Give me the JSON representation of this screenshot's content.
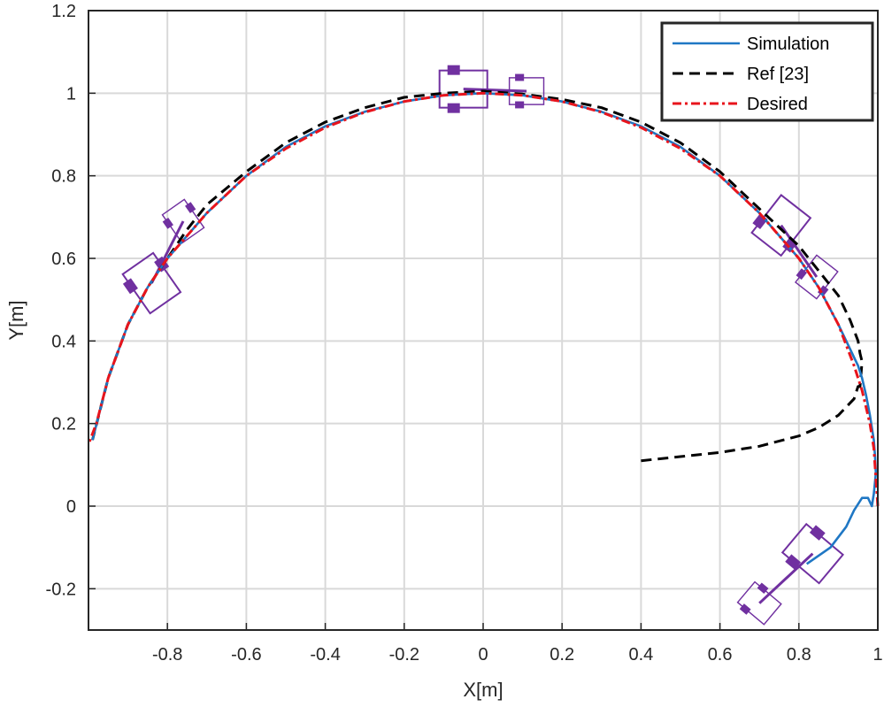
{
  "colors": {
    "simulation": "#1f77c4",
    "ref": "#000000",
    "desired": "#e8141c",
    "robot": "#7030a0",
    "grid": "#d9d9d9",
    "axis": "#262626"
  },
  "chart_data": {
    "type": "line",
    "xlabel": "X[m]",
    "ylabel": "Y[m]",
    "xlim": [
      -1,
      1
    ],
    "ylim": [
      -0.3,
      1.2
    ],
    "xticks": [
      -0.8,
      -0.6,
      -0.4,
      -0.2,
      0,
      0.2,
      0.4,
      0.6,
      0.8,
      1
    ],
    "xtick_labels": [
      "-0.8",
      "-0.6",
      "-0.4",
      "-0.2",
      "0",
      "0.2",
      "0.4",
      "0.6",
      "0.8",
      "1"
    ],
    "yticks": [
      -0.2,
      0,
      0.2,
      0.4,
      0.6,
      0.8,
      1,
      1.2
    ],
    "ytick_labels": [
      "-0.2",
      "0",
      "0.2",
      "0.4",
      "0.6",
      "0.8",
      "1",
      "1.2"
    ],
    "grid": true,
    "legend_position": "top-right",
    "series": [
      {
        "name": "Simulation",
        "style": "solid",
        "x": [
          0.82,
          0.88,
          0.92,
          0.94,
          0.96,
          0.975,
          0.985,
          0.99,
          0.995,
          0.993,
          0.99,
          0.98,
          0.97,
          0.96,
          0.95,
          0.94,
          0.93,
          0.9,
          0.85,
          0.8,
          0.7,
          0.6,
          0.5,
          0.4,
          0.3,
          0.2,
          0.1,
          0,
          -0.1,
          -0.2,
          -0.3,
          -0.4,
          -0.5,
          -0.6,
          -0.7,
          -0.8,
          -0.85,
          -0.9,
          -0.95,
          -0.99
        ],
        "y": [
          -0.14,
          -0.1,
          -0.05,
          -0.01,
          0.02,
          0.02,
          0.0,
          0.03,
          0.08,
          0.12,
          0.16,
          0.22,
          0.27,
          0.31,
          0.34,
          0.36,
          0.38,
          0.44,
          0.53,
          0.6,
          0.71,
          0.8,
          0.87,
          0.92,
          0.955,
          0.98,
          0.995,
          1.0,
          0.995,
          0.98,
          0.955,
          0.92,
          0.87,
          0.8,
          0.71,
          0.6,
          0.53,
          0.44,
          0.31,
          0.16
        ]
      },
      {
        "name": "Ref [23]",
        "style": "dashed",
        "x": [
          0.4,
          0.5,
          0.6,
          0.7,
          0.8,
          0.85,
          0.9,
          0.94,
          0.95,
          0.955,
          0.96,
          0.955,
          0.95,
          0.93,
          0.9,
          0.85,
          0.8,
          0.7,
          0.6,
          0.5,
          0.4,
          0.3,
          0.2,
          0.1,
          0,
          -0.1,
          -0.2,
          -0.3,
          -0.4,
          -0.5,
          -0.6,
          -0.7,
          -0.75,
          -0.8,
          -0.85,
          -0.9,
          -0.95,
          -0.99
        ],
        "y": [
          0.11,
          0.12,
          0.13,
          0.145,
          0.17,
          0.19,
          0.22,
          0.26,
          0.29,
          0.29,
          0.35,
          0.37,
          0.4,
          0.45,
          0.51,
          0.57,
          0.63,
          0.72,
          0.81,
          0.88,
          0.93,
          0.965,
          0.985,
          0.998,
          1.005,
          1.0,
          0.99,
          0.965,
          0.93,
          0.88,
          0.81,
          0.73,
          0.67,
          0.6,
          0.53,
          0.44,
          0.31,
          0.16
        ]
      },
      {
        "name": "Desired",
        "style": "dash-dot",
        "x": [
          1.0,
          0.99,
          0.98,
          0.96,
          0.94,
          0.92,
          0.9,
          0.85,
          0.8,
          0.7,
          0.6,
          0.5,
          0.4,
          0.3,
          0.2,
          0.1,
          0,
          -0.1,
          -0.2,
          -0.3,
          -0.4,
          -0.5,
          -0.6,
          -0.7,
          -0.8,
          -0.85,
          -0.9,
          -0.95,
          -0.98,
          -1.0
        ],
        "y": [
          0.0,
          0.14,
          0.2,
          0.28,
          0.34,
          0.39,
          0.44,
          0.53,
          0.6,
          0.71,
          0.8,
          0.866,
          0.917,
          0.954,
          0.98,
          0.995,
          1.0,
          0.995,
          0.98,
          0.954,
          0.917,
          0.866,
          0.8,
          0.71,
          0.6,
          0.53,
          0.44,
          0.31,
          0.2,
          0.15
        ]
      }
    ],
    "robots": [
      {
        "x": -0.05,
        "y": 1.01,
        "angle": 0,
        "scale": 1.0,
        "connect_to": 1
      },
      {
        "x": 0.11,
        "y": 1.005,
        "angle": 0,
        "scale": 0.72
      },
      {
        "x": -0.84,
        "y": 0.54,
        "angle": 55,
        "scale": 1.0,
        "connect_to": 3
      },
      {
        "x": -0.76,
        "y": 0.69,
        "angle": 55,
        "scale": 0.72
      },
      {
        "x": 0.755,
        "y": 0.68,
        "angle": -52,
        "scale": 1.0,
        "connect_to": 5
      },
      {
        "x": 0.845,
        "y": 0.555,
        "angle": -52,
        "scale": 0.72
      },
      {
        "x": 0.835,
        "y": -0.115,
        "angle": 40,
        "scale": 1.0,
        "connect_to": 7
      },
      {
        "x": 0.7,
        "y": -0.235,
        "angle": 40,
        "scale": 0.72
      }
    ]
  }
}
